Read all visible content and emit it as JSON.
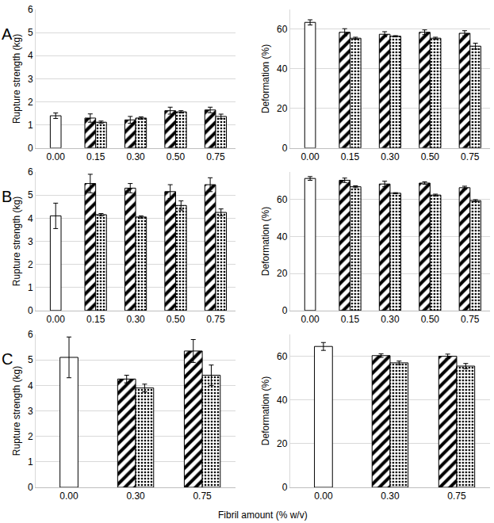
{
  "xlabel": "Fibril amount (% w/v)",
  "chart_data": [
    {
      "type": "bar",
      "annotations": [
        "A"
      ],
      "ylabel": "Rupture strength (kg)",
      "categories": [
        "0.00",
        "0.15",
        "0.30",
        "0.50",
        "0.75"
      ],
      "ylim": [
        0,
        6
      ],
      "yticks": [
        0,
        1,
        2,
        3,
        4,
        5,
        6
      ],
      "grid": true,
      "series": [
        {
          "color": "#ffffff",
          "marker": "plain",
          "values": [
            1.4,
            null,
            null,
            null,
            null
          ],
          "errors": [
            0.12,
            null,
            null,
            null,
            null
          ]
        },
        {
          "color": "#000000",
          "marker": "stripes",
          "values": [
            null,
            1.3,
            1.22,
            1.62,
            1.65
          ],
          "errors": [
            null,
            0.18,
            0.15,
            0.15,
            0.12
          ]
        },
        {
          "color": "#000000",
          "marker": "dots",
          "values": [
            null,
            1.12,
            1.3,
            1.57,
            1.37
          ],
          "errors": [
            null,
            0.05,
            0.05,
            0.05,
            0.1
          ]
        }
      ]
    },
    {
      "type": "bar",
      "ylabel": "Deformation (%)",
      "categories": [
        "0.00",
        "0.15",
        "0.30",
        "0.50",
        "0.75"
      ],
      "ylim": [
        0,
        70
      ],
      "yticks": [
        0,
        20,
        40,
        60
      ],
      "grid": true,
      "series": [
        {
          "color": "#ffffff",
          "marker": "plain",
          "values": [
            63.5,
            null,
            null,
            null,
            null
          ],
          "errors": [
            1.3,
            null,
            null,
            null,
            null
          ]
        },
        {
          "color": "#000000",
          "marker": "stripes",
          "values": [
            null,
            58.5,
            57.5,
            58.5,
            58.0
          ],
          "errors": [
            null,
            1.8,
            1.3,
            1.2,
            1.3
          ]
        },
        {
          "color": "#000000",
          "marker": "dots",
          "values": [
            null,
            55.5,
            56.5,
            55.5,
            51.5
          ],
          "errors": [
            null,
            0.5,
            0.3,
            0.5,
            1.5
          ]
        }
      ]
    },
    {
      "type": "bar",
      "annotations": [
        "B"
      ],
      "ylabel": "Rupture strength (kg)",
      "categories": [
        "0.00",
        "0.15",
        "0.30",
        "0.50",
        "0.75"
      ],
      "ylim": [
        0,
        6
      ],
      "yticks": [
        0,
        1,
        2,
        3,
        4,
        5,
        6
      ],
      "grid": true,
      "series": [
        {
          "color": "#ffffff",
          "marker": "plain",
          "values": [
            4.1,
            null,
            null,
            null,
            null
          ],
          "errors": [
            0.55,
            null,
            null,
            null,
            null
          ]
        },
        {
          "color": "#000000",
          "marker": "stripes",
          "values": [
            null,
            5.5,
            5.3,
            5.15,
            5.45
          ],
          "errors": [
            null,
            0.4,
            0.2,
            0.3,
            0.3
          ]
        },
        {
          "color": "#000000",
          "marker": "dots",
          "values": [
            null,
            4.15,
            4.05,
            4.55,
            4.25
          ],
          "errors": [
            null,
            0.05,
            0.05,
            0.2,
            0.15
          ]
        }
      ]
    },
    {
      "type": "bar",
      "ylabel": "Deformation (%)",
      "categories": [
        "0.00",
        "0.15",
        "0.30",
        "0.50",
        "0.75"
      ],
      "ylim": [
        0,
        75
      ],
      "yticks": [
        0,
        20,
        40,
        60
      ],
      "grid": true,
      "series": [
        {
          "color": "#ffffff",
          "marker": "plain",
          "values": [
            71.5,
            null,
            null,
            null,
            null
          ],
          "errors": [
            1.0,
            null,
            null,
            null,
            null
          ]
        },
        {
          "color": "#000000",
          "marker": "stripes",
          "values": [
            null,
            70.5,
            68.5,
            69.0,
            66.5
          ],
          "errors": [
            null,
            1.2,
            1.5,
            0.7,
            0.8
          ]
        },
        {
          "color": "#000000",
          "marker": "dots",
          "values": [
            null,
            67.0,
            63.5,
            62.5,
            59.5
          ],
          "errors": [
            null,
            0.5,
            0.3,
            0.5,
            0.5
          ]
        }
      ]
    },
    {
      "type": "bar",
      "annotations": [
        "C"
      ],
      "ylabel": "Rupture strength (kg)",
      "categories": [
        "0.00",
        "0.30",
        "0.75"
      ],
      "ylim": [
        0,
        6
      ],
      "yticks": [
        0,
        1,
        2,
        3,
        4,
        5,
        6
      ],
      "grid": true,
      "series": [
        {
          "color": "#ffffff",
          "marker": "plain",
          "values": [
            5.1,
            null,
            null
          ],
          "errors": [
            0.8,
            null,
            null
          ]
        },
        {
          "color": "#000000",
          "marker": "stripes",
          "values": [
            null,
            4.25,
            5.35
          ],
          "errors": [
            null,
            0.15,
            0.45
          ]
        },
        {
          "color": "#000000",
          "marker": "dots",
          "values": [
            null,
            3.9,
            4.4
          ],
          "errors": [
            null,
            0.15,
            0.4
          ]
        }
      ]
    },
    {
      "type": "bar",
      "ylabel": "Deformation (%)",
      "categories": [
        "0.00",
        "0.30",
        "0.75"
      ],
      "ylim": [
        0,
        70
      ],
      "yticks": [
        0,
        20,
        40,
        60
      ],
      "grid": true,
      "series": [
        {
          "color": "#ffffff",
          "marker": "plain",
          "values": [
            64.5,
            null,
            null
          ],
          "errors": [
            1.8,
            null,
            null
          ]
        },
        {
          "color": "#000000",
          "marker": "stripes",
          "values": [
            null,
            60.3,
            60.0
          ],
          "errors": [
            null,
            0.8,
            1.0
          ]
        },
        {
          "color": "#000000",
          "marker": "dots",
          "values": [
            null,
            57.0,
            55.5
          ],
          "errors": [
            null,
            0.8,
            1.2
          ]
        }
      ]
    }
  ]
}
